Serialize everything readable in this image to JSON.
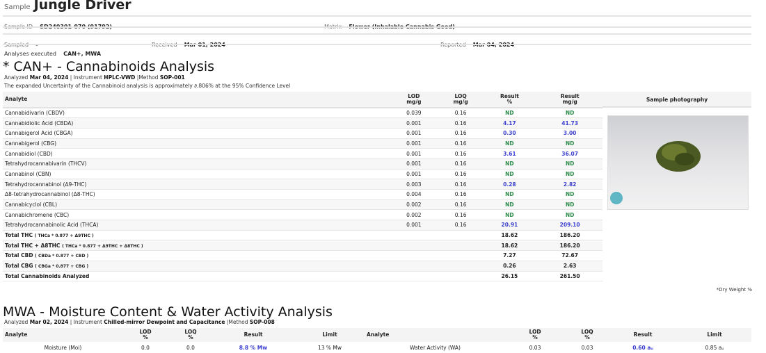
{
  "header": {
    "sample_label": "Sample",
    "sample_name": "Jungle Driver",
    "sample_id_label": "Sample ID",
    "sample_id": "SD240301-070 (91792)",
    "matrix_label": "Matrix",
    "matrix": "Flower (Inhalable Cannabis Good)",
    "sampled_label": "Sampled",
    "sampled": "-",
    "received_label": "Received",
    "received": "Mar 01, 2024",
    "reported_label": "Reported",
    "reported": "Mar 04, 2024",
    "analyses_label": "Analyses executed",
    "analyses": "CAN+, MWA"
  },
  "can": {
    "title": "* CAN+ - Cannabinoids Analysis",
    "analyzed_label": "Analyzed",
    "analyzed": "Mar 04, 2024",
    "instrument_label": "| Instrument",
    "instrument": "HPLC-VWD",
    "method_label": "|Method",
    "method": "SOP-001",
    "uncertainty": "The expanded Uncertainty of the Cannabinoid analysis is approximately ∂.806% at the 95% Confidence Level",
    "columns": [
      "Analyte",
      "LOD\nmg/g",
      "LOQ\nmg/g",
      "Result\n%",
      "Result\nmg/g"
    ],
    "photo_header": "Sample photography",
    "rows": [
      [
        "Cannabidivarin (CBDV)",
        "0.039",
        "0.16",
        "ND",
        "ND"
      ],
      [
        "Cannabidiolic Acid (CBDA)",
        "0.001",
        "0.16",
        "4.17",
        "41.73"
      ],
      [
        "Cannabigerol Acid (CBGA)",
        "0.001",
        "0.16",
        "0.30",
        "3.00"
      ],
      [
        "Cannabigerol (CBG)",
        "0.001",
        "0.16",
        "ND",
        "ND"
      ],
      [
        "Cannabidiol (CBD)",
        "0.001",
        "0.16",
        "3.61",
        "36.07"
      ],
      [
        "Tetrahydrocannabivarin (THCV)",
        "0.001",
        "0.16",
        "ND",
        "ND"
      ],
      [
        "Cannabinol (CBN)",
        "0.001",
        "0.16",
        "ND",
        "ND"
      ],
      [
        "Tetrahydrocannabinol (Δ9-THC)",
        "0.003",
        "0.16",
        "0.28",
        "2.82"
      ],
      [
        "Δ8-tetrahydrocannabinol (Δ8-THC)",
        "0.004",
        "0.16",
        "ND",
        "ND"
      ],
      [
        "Cannabicyclol (CBL)",
        "0.002",
        "0.16",
        "ND",
        "ND"
      ],
      [
        "Cannabichromene (CBC)",
        "0.002",
        "0.16",
        "ND",
        "ND"
      ],
      [
        "Tetrahydrocannabinolic Acid (THCA)",
        "0.001",
        "0.16",
        "20.91",
        "209.10"
      ]
    ],
    "totals": [
      [
        "Total THC",
        "( THCa * 0.877 + Δ9THC )",
        "18.62",
        "186.20"
      ],
      [
        "Total THC + Δ8THC",
        "( THCa * 0.877 + Δ9THC + Δ8THC )",
        "18.62",
        "186.20"
      ],
      [
        "Total CBD",
        "( CBDa * 0.877 + CBD )",
        "7.27",
        "72.67"
      ],
      [
        "Total CBG",
        "( CBGa * 0.877 + CBG )",
        "0.26",
        "2.63"
      ],
      [
        "Total Cannabinoids Analyzed",
        "",
        "26.15",
        "261.50"
      ]
    ],
    "footnote": "*Dry Weight %"
  },
  "mwa": {
    "title": "MWA - Moisture Content & Water Activity Analysis",
    "analyzed_label": "Analyzed",
    "analyzed": "Mar 02, 2024",
    "instrument_label": "| Instrument",
    "instrument": "Chilled-mirror Dewpoint and Capacitance",
    "method_label": "|Method",
    "method": "SOP-008",
    "columns": [
      "Analyte",
      "LOD\n%",
      "LOQ\n%",
      "Result",
      "Limit",
      "Analyte",
      "LOD\n%",
      "LOQ\n%",
      "Result",
      "Limit"
    ],
    "row": [
      "Moisture (Moi)",
      "0.0",
      "0.0",
      "8.8 % Mw",
      "13 % Mw",
      "Water Activity (WA)",
      "0.03",
      "0.03",
      "0.60 aᵤ",
      "0.85 aᵤ"
    ]
  },
  "colors": {
    "nd": "#2e8b4b",
    "result": "#3b3fcf"
  }
}
